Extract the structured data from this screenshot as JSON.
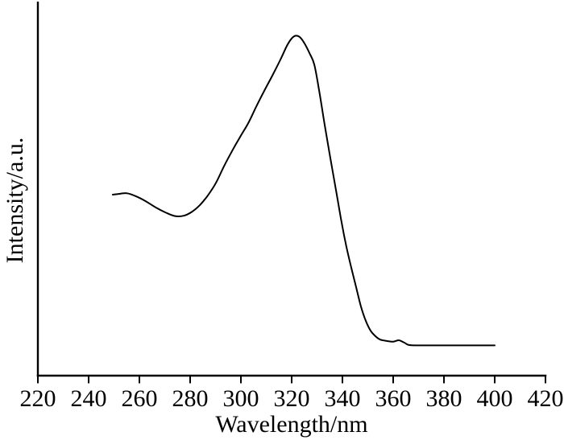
{
  "figure": {
    "background_color": "#ffffff",
    "axis_color": "#000000",
    "curve_color": "#000000"
  },
  "chart_data": {
    "type": "line",
    "title": "",
    "xlabel": "Wavelength/nm",
    "ylabel": "Intensity/a.u.",
    "xlim": [
      220,
      420
    ],
    "ylim": [
      0,
      1
    ],
    "x_ticks": [
      220,
      240,
      260,
      280,
      300,
      320,
      340,
      360,
      380,
      400,
      420
    ],
    "y_ticks": [],
    "grid": false,
    "legend": null,
    "notes": "Single black absorption-style spectrum; y axis unlabeled arbitrary units; curve spans 250-400 nm; local maximum ~255 nm, local minimum ~274 nm, main peak ~322 nm, sharp falling edge ~330-350 nm, small shoulder ~362 nm, flat baseline to 400 nm",
    "series": [
      {
        "x": [
          249.5,
          252.7,
          255.2,
          258.4,
          262.2,
          266.3,
          270.2,
          274.0,
          277.5,
          280.6,
          283.8,
          287.0,
          290.2,
          293.3,
          296.5,
          299.7,
          302.9,
          306.0,
          309.2,
          312.4,
          315.6,
          318.1,
          320.0,
          321.6,
          323.2,
          325.1,
          327.0,
          328.9,
          330.8,
          333.0,
          335.2,
          337.5,
          339.7,
          341.6,
          343.5,
          345.4,
          347.3,
          349.2,
          351.1,
          353.0,
          354.9,
          357.5,
          360.0,
          362.2,
          364.4,
          366.3,
          370.2,
          378.1,
          387.6,
          400.0
        ],
        "y": [
          0.532,
          0.535,
          0.536,
          0.528,
          0.514,
          0.495,
          0.48,
          0.469,
          0.47,
          0.481,
          0.501,
          0.53,
          0.567,
          0.615,
          0.66,
          0.702,
          0.742,
          0.79,
          0.837,
          0.882,
          0.929,
          0.969,
          0.991,
          0.999,
          0.995,
          0.976,
          0.948,
          0.915,
          0.839,
          0.738,
          0.641,
          0.544,
          0.449,
          0.378,
          0.317,
          0.26,
          0.203,
          0.161,
          0.132,
          0.116,
          0.106,
          0.102,
          0.1,
          0.104,
          0.097,
          0.09,
          0.089,
          0.089,
          0.089,
          0.089
        ]
      }
    ]
  }
}
